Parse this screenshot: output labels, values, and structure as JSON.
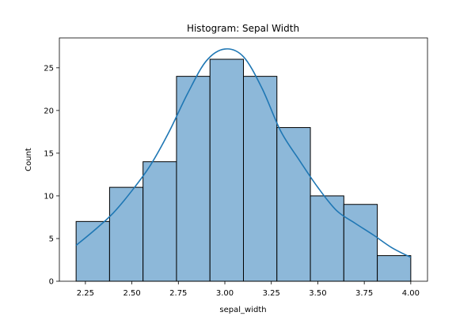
{
  "chart_data": {
    "type": "bar",
    "title": "Histogram: Sepal Width",
    "xlabel": "sepal_width",
    "ylabel": "Count",
    "bin_edges": [
      2.2,
      2.38,
      2.56,
      2.74,
      2.92,
      3.1,
      3.28,
      3.46,
      3.64,
      3.82,
      4.0
    ],
    "values": [
      7,
      11,
      14,
      24,
      26,
      24,
      18,
      10,
      9,
      3
    ],
    "xlim": [
      2.11,
      4.09
    ],
    "ylim": [
      0,
      28.5
    ],
    "xticks": [
      2.25,
      2.5,
      2.75,
      3.0,
      3.25,
      3.5,
      3.75,
      4.0
    ],
    "xtick_labels": [
      "2.25",
      "2.50",
      "2.75",
      "3.00",
      "3.25",
      "3.50",
      "3.75",
      "4.00"
    ],
    "yticks": [
      0,
      5,
      10,
      15,
      20,
      25
    ],
    "ytick_labels": [
      "0",
      "5",
      "10",
      "15",
      "20",
      "25"
    ],
    "kde": {
      "x": [
        2.2,
        2.3,
        2.4,
        2.5,
        2.6,
        2.7,
        2.8,
        2.9,
        3.0,
        3.1,
        3.2,
        3.3,
        3.4,
        3.5,
        3.6,
        3.7,
        3.8,
        3.9,
        4.0
      ],
      "y": [
        4.2,
        6.0,
        8.0,
        10.6,
        13.6,
        17.5,
        22.0,
        25.8,
        27.2,
        26.3,
        22.6,
        17.6,
        14.2,
        11.0,
        8.3,
        6.8,
        5.4,
        3.9,
        2.8
      ]
    },
    "grid": false,
    "colors": {
      "bar_fill": "#8DB8D9",
      "bar_edge": "#000000",
      "kde_line": "#1F77B4"
    }
  }
}
